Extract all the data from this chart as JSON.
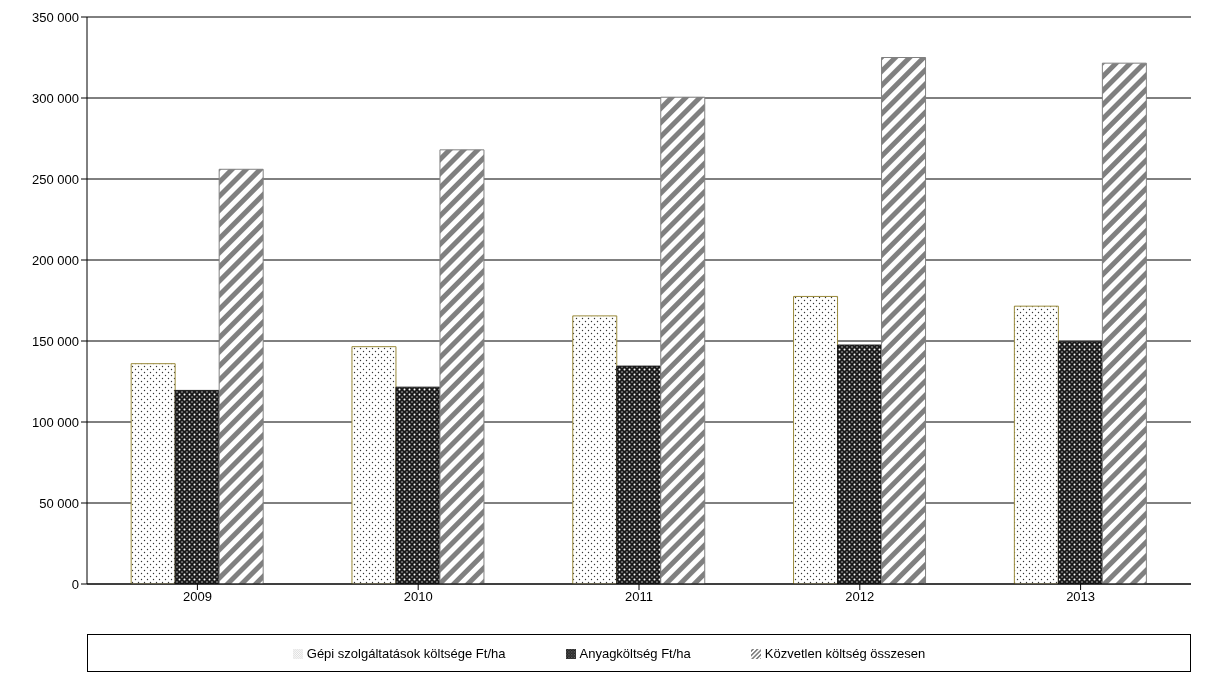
{
  "chart_data": {
    "type": "bar",
    "categories": [
      "2009",
      "2010",
      "2011",
      "2012",
      "2013"
    ],
    "series": [
      {
        "name": "Gépi szolgáltatások költsége Ft/ha",
        "color": "#9a8a3a",
        "values": [
          136000,
          146500,
          165500,
          177500,
          171500
        ]
      },
      {
        "name": "Anyagköltség Ft/ha",
        "color": "#1a1a1a",
        "values": [
          119500,
          121500,
          134500,
          147500,
          149500
        ]
      },
      {
        "name": "Közvetlen költség összesen",
        "color": "#808080",
        "values": [
          256000,
          268000,
          300500,
          325000,
          321500
        ]
      }
    ],
    "ylim": [
      0,
      350000
    ],
    "yticks": [
      {
        "value": 0,
        "label": "0"
      },
      {
        "value": 50000,
        "label": "50 000"
      },
      {
        "value": 100000,
        "label": "100 000"
      },
      {
        "value": 150000,
        "label": "150 000"
      },
      {
        "value": 200000,
        "label": "200 000"
      },
      {
        "value": 250000,
        "label": "250 000"
      },
      {
        "value": 300000,
        "label": "300 000"
      },
      {
        "value": 350000,
        "label": "350 000"
      }
    ],
    "grid": "y",
    "legend": "bottom"
  }
}
